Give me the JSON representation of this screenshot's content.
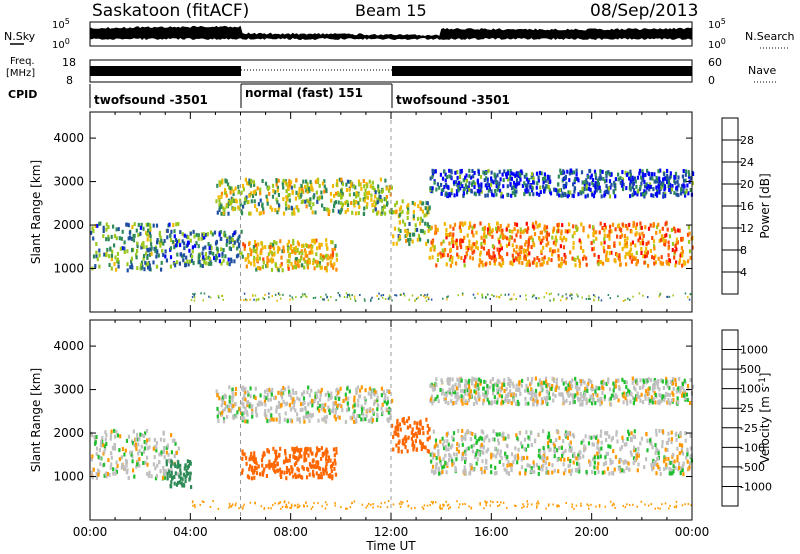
{
  "header": {
    "title": "Saskatoon (fitACF)",
    "beam": "Beam 15",
    "date": "08/Sep/2013"
  },
  "top_panels": {
    "nsky_label": "N.Sky",
    "nsky_ticks": [
      "10^5",
      "10^0"
    ],
    "nsearch_label": "N.Search",
    "nsearch_ticks": [
      "10^5",
      "10^0"
    ],
    "freq_label_line1": "Freq.",
    "freq_label_line2": "[MHz]",
    "freq_ticks": [
      "18",
      "8"
    ],
    "nave_label": "Nave",
    "nave_ticks": [
      "60",
      "0"
    ],
    "cpid_label": "CPID",
    "cpid_segments": [
      {
        "label": "twofsound -3501",
        "start": 0,
        "end": 6
      },
      {
        "label": "normal (fast) 151",
        "start": 6,
        "end": 12
      },
      {
        "label": "twofsound -3501",
        "start": 12,
        "end": 24
      }
    ]
  },
  "power_colorbar": {
    "label": "Power [dB]",
    "ticks": [
      "28",
      "24",
      "20",
      "16",
      "12",
      "8",
      "4"
    ],
    "colors": [
      "#ff0000",
      "#ff4500",
      "#ff8c00",
      "#f0b800",
      "#9ac81e",
      "#2e8b57",
      "#1f4fa0",
      "#0000ff"
    ]
  },
  "velocity_colorbar": {
    "label": "Velocity [m s^-1]",
    "ticks": [
      "1000",
      "500",
      "100",
      "25",
      "-25",
      "-100",
      "-500",
      "-1000"
    ],
    "colors": [
      "#1a30b0",
      "#2f5fb0",
      "#2e8b57",
      "#1fbf2f",
      "#c0c0c0",
      "#ff9900",
      "#ff6600",
      "#ff3300",
      "#ff0000"
    ]
  },
  "chart_data": [
    {
      "type": "heatmap",
      "title": "",
      "ylabel": "Slant Range [km]",
      "xlabel": "",
      "ylim": [
        0,
        4600
      ],
      "xlim": [
        0,
        24
      ],
      "yticks": [
        1000,
        2000,
        3000,
        4000
      ],
      "color_quantity": "Power [dB]",
      "bands": [
        {
          "t0": 0,
          "t1": 3.5,
          "r0": 1000,
          "r1": 2100,
          "value": 10
        },
        {
          "t0": 3.5,
          "t1": 6,
          "r0": 1100,
          "r1": 1900,
          "value": 9
        },
        {
          "t0": 6,
          "t1": 9.8,
          "r0": 1000,
          "r1": 1700,
          "value": 18
        },
        {
          "t0": 5,
          "t1": 12,
          "r0": 2300,
          "r1": 3100,
          "value": 14
        },
        {
          "t0": 12,
          "t1": 13.5,
          "r0": 1600,
          "r1": 2600,
          "value": 14
        },
        {
          "t0": 13.5,
          "t1": 24,
          "r0": 1100,
          "r1": 2100,
          "value": 22
        },
        {
          "t0": 13.5,
          "t1": 24,
          "r0": 2700,
          "r1": 3300,
          "value": 6
        }
      ]
    },
    {
      "type": "heatmap",
      "title": "",
      "ylabel": "Slant Range [km]",
      "xlabel": "Time UT",
      "ylim": [
        0,
        4600
      ],
      "xlim": [
        0,
        24
      ],
      "yticks": [
        1000,
        2000,
        3000,
        4000
      ],
      "xticks": [
        "00:00",
        "04:00",
        "08:00",
        "12:00",
        "16:00",
        "20:00",
        "00:00"
      ],
      "color_quantity": "Velocity [m s^-1]",
      "bands": [
        {
          "t0": 0,
          "t1": 3.5,
          "r0": 1000,
          "r1": 2100,
          "value": 0
        },
        {
          "t0": 3,
          "t1": 4,
          "r0": 800,
          "r1": 1400,
          "value": 400
        },
        {
          "t0": 6,
          "t1": 9.8,
          "r0": 1000,
          "r1": 1700,
          "value": -300
        },
        {
          "t0": 5,
          "t1": 12,
          "r0": 2300,
          "r1": 3100,
          "value": 0
        },
        {
          "t0": 12,
          "t1": 13.5,
          "r0": 1600,
          "r1": 2400,
          "value": -200
        },
        {
          "t0": 13.5,
          "t1": 24,
          "r0": 1100,
          "r1": 2100,
          "value": 0
        },
        {
          "t0": 13.5,
          "t1": 24,
          "r0": 2700,
          "r1": 3300,
          "value": 0
        }
      ]
    }
  ]
}
